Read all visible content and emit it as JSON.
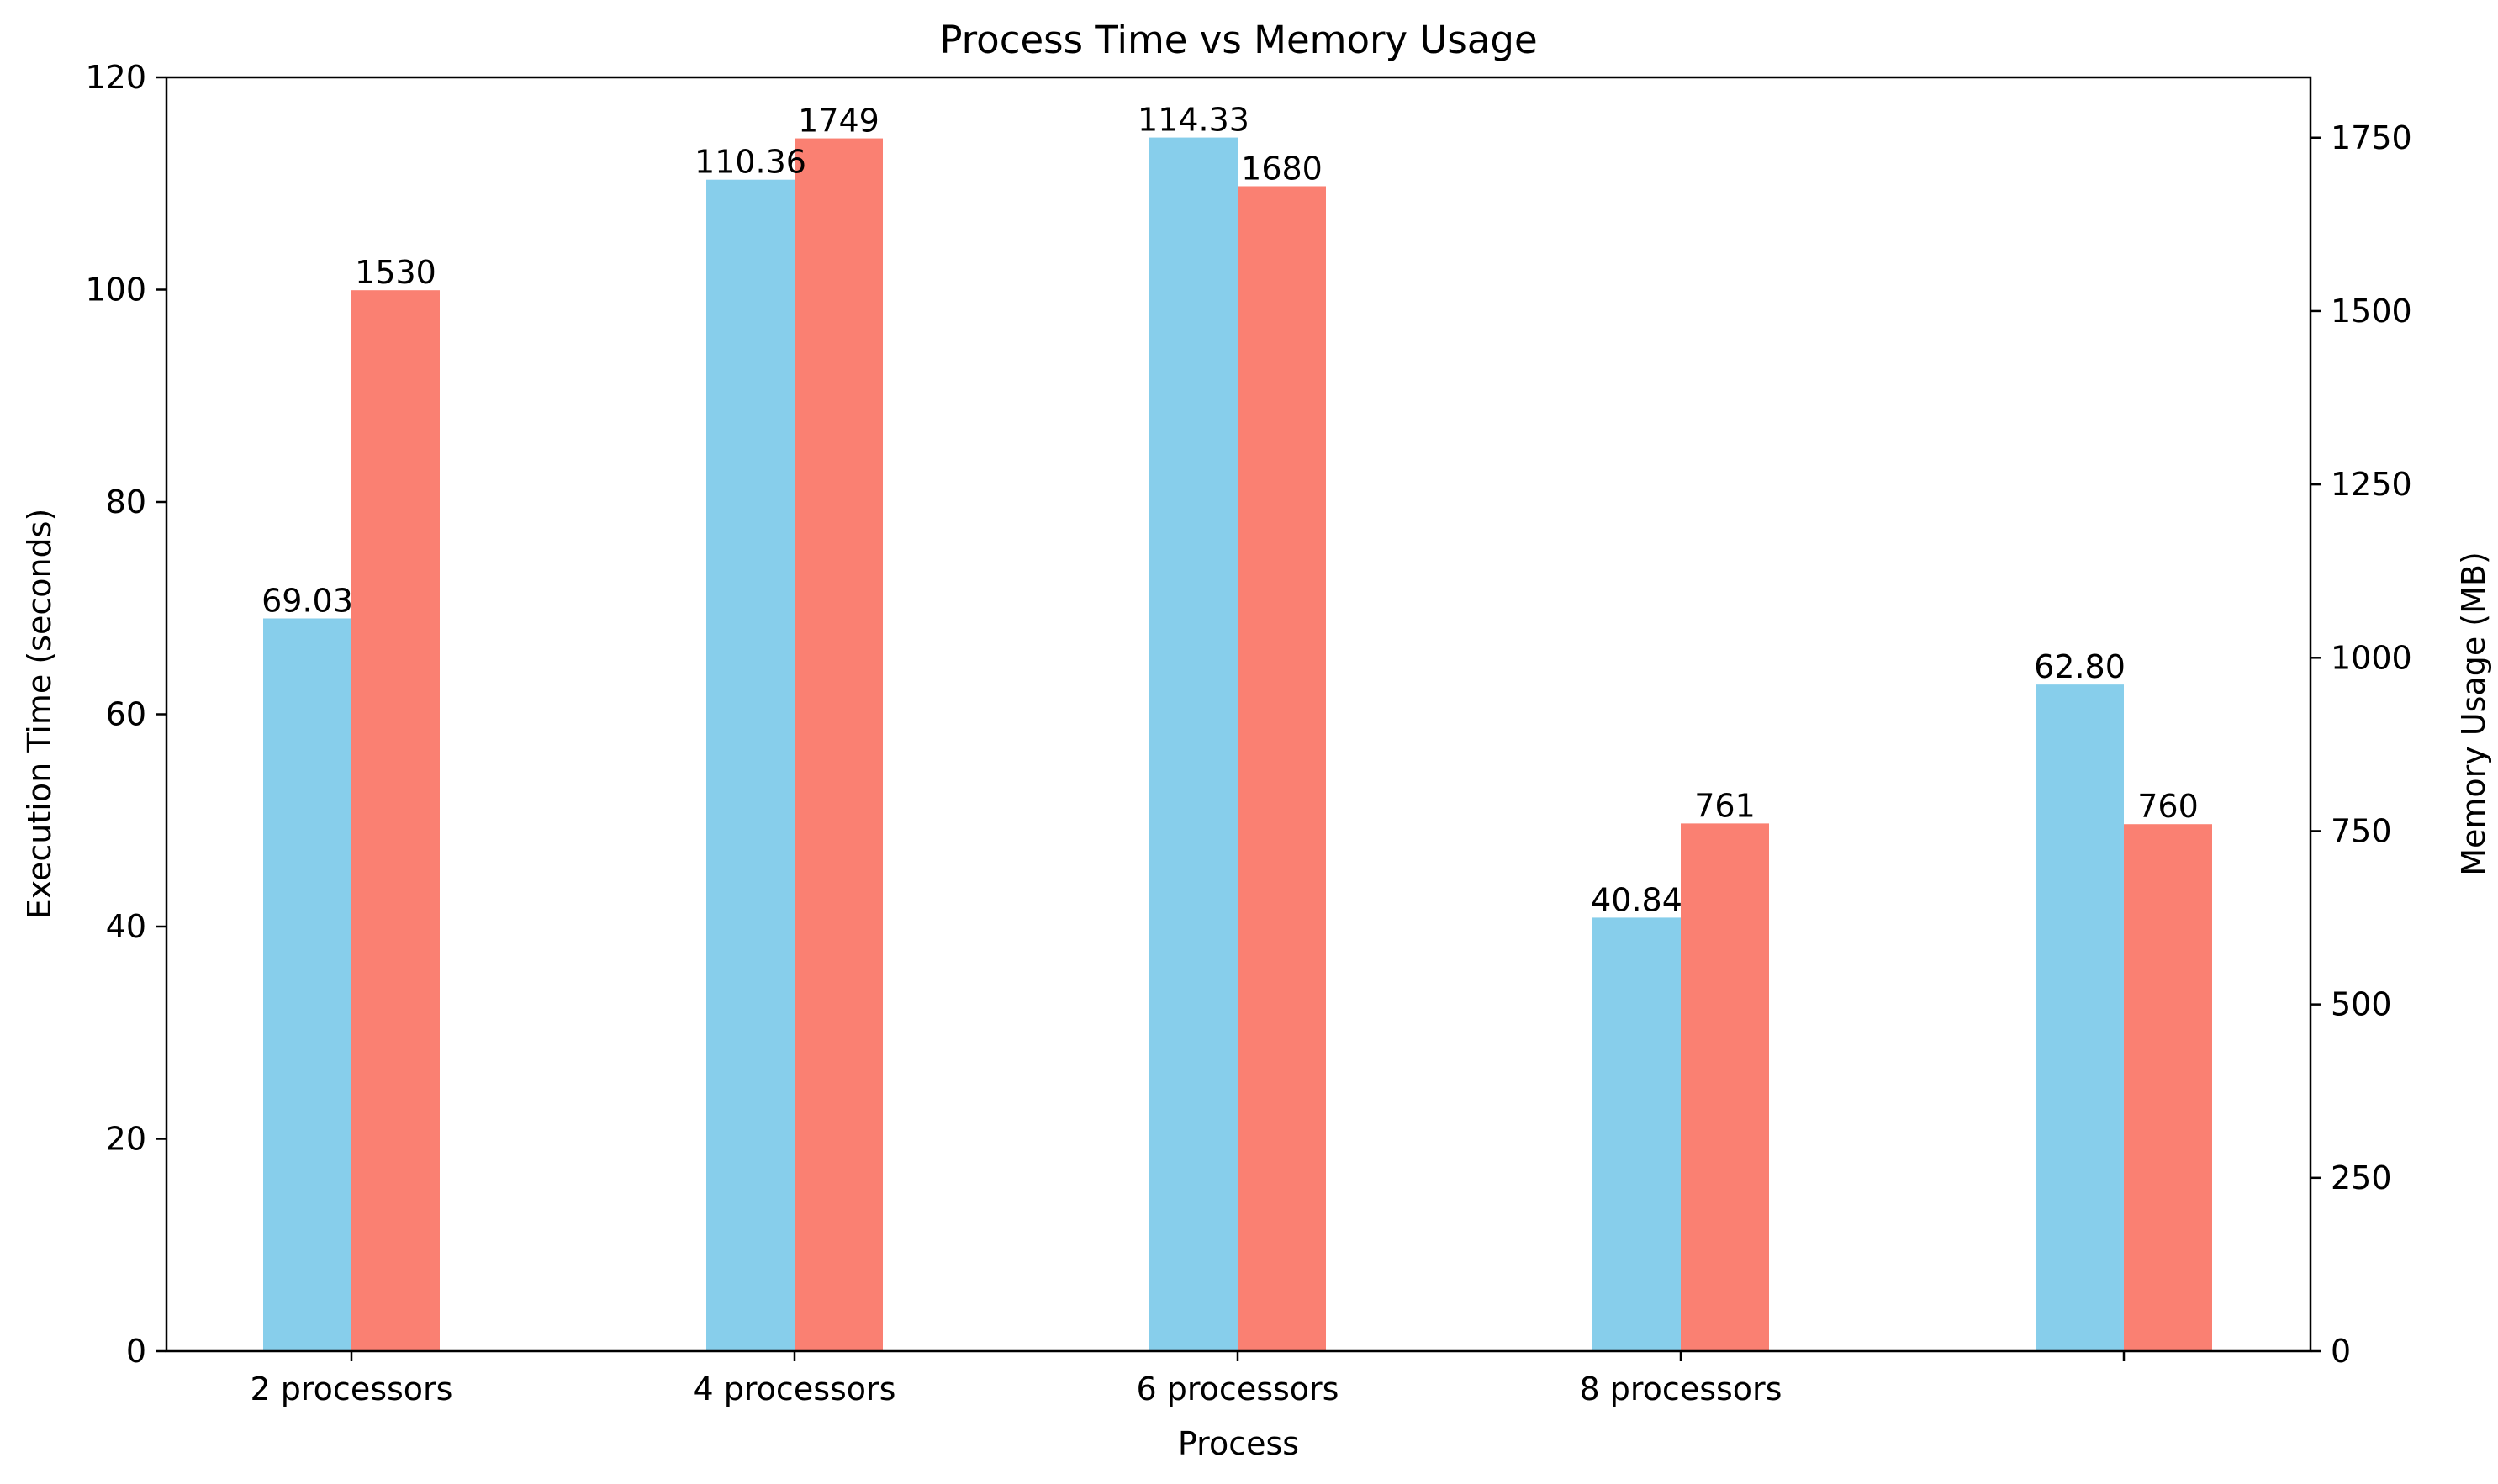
{
  "chart_data": {
    "type": "bar",
    "title": "Process Time vs Memory Usage",
    "xlabel": "Process",
    "categories": [
      "2 processors",
      "4 processors",
      "6 processors",
      "8 processors",
      ""
    ],
    "series": [
      {
        "axis": "left",
        "color": "#87CEEB",
        "values": [
          69.03,
          110.36,
          114.33,
          40.84,
          62.8
        ],
        "labels": [
          "69.03",
          "110.36",
          "114.33",
          "40.84",
          "62.80"
        ]
      },
      {
        "axis": "right",
        "color": "#FA8072",
        "values": [
          1530,
          1749,
          1680,
          761,
          760
        ],
        "labels": [
          "1530",
          "1749",
          "1680",
          "761",
          "760"
        ]
      }
    ],
    "y_left": {
      "label": "Execution Time (seconds)",
      "ylim": [
        0,
        120
      ],
      "ticks": [
        0,
        20,
        40,
        60,
        80,
        100,
        120
      ]
    },
    "y_right": {
      "label": "Memory Usage (MB)",
      "ylim": [
        0,
        1837
      ],
      "ticks": [
        0,
        250,
        500,
        750,
        1000,
        1250,
        1500,
        1750
      ]
    },
    "grid": false,
    "legend": "none"
  }
}
